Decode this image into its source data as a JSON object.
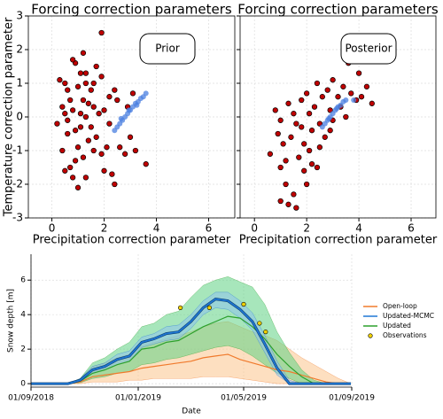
{
  "chart_data": [
    {
      "type": "scatter",
      "title": "Forcing correction parameters",
      "annotation": "Prior",
      "x_label": "Precipitation correction parameter",
      "y_label": "Temperature correction parameter",
      "xlim": [
        -0.9,
        7.0
      ],
      "ylim": [
        -3,
        3
      ],
      "xticks": [
        0,
        2,
        4,
        6
      ],
      "yticks": [
        -3,
        -2,
        -1,
        0,
        1,
        2,
        3
      ],
      "grid": true,
      "show_yticklabels": true,
      "series": [
        {
          "color": "#c00000",
          "x": [
            0.3,
            0.5,
            0.6,
            0.4,
            0.5,
            0.2,
            0.6,
            0.4,
            0.5,
            0.7,
            0.8,
            0.9,
            1.0,
            0.9,
            0.8,
            0.7,
            1.0,
            1.1,
            0.9,
            0.8,
            1.2,
            1.3,
            1.2,
            1.3,
            1.1,
            1.2,
            1.0,
            1.3,
            1.4,
            1.5,
            1.6,
            1.5,
            1.6,
            1.7,
            1.9,
            1.9,
            1.8,
            1.7,
            1.9,
            2.1,
            2.0,
            2.3,
            2.4,
            2.2,
            2.4,
            2.5,
            2.6,
            2.8,
            3.0,
            3.2,
            3.1,
            3.6,
            2.9,
            1.4,
            1.1,
            0.6,
            2.0,
            2.2,
            1.6,
            1.3
          ],
          "values": [
            1.1,
            1.0,
            0.8,
            0.3,
            0.1,
            -0.2,
            -0.5,
            -1.0,
            -1.6,
            -1.5,
            -1.8,
            -1.3,
            -0.9,
            -0.4,
            0.2,
            0.5,
            0.9,
            1.3,
            1.6,
            1.7,
            1.9,
            1.3,
            0.5,
            0.0,
            -0.3,
            -1.2,
            -2.1,
            -1.8,
            -0.7,
            -0.3,
            0.3,
            0.8,
            1.0,
            1.5,
            2.5,
            1.2,
            0.1,
            -0.6,
            -1.1,
            -0.9,
            -1.6,
            -1.7,
            -2.0,
            0.6,
            0.8,
            0.5,
            -0.9,
            -1.1,
            -0.6,
            -1.0,
            0.7,
            -1.4,
            0.3,
            0.4,
            0.1,
            -0.1,
            0.2,
            -0.2,
            -1.0,
            1.0
          ]
        },
        {
          "color": "#4a7fe0",
          "x": [
            2.4,
            2.5,
            2.6,
            2.7,
            2.8,
            2.9,
            3.0,
            3.1,
            3.2,
            3.3,
            3.4,
            3.5,
            3.6,
            2.65,
            2.95,
            3.25
          ],
          "values": [
            -0.4,
            -0.3,
            -0.2,
            -0.1,
            0.0,
            0.1,
            0.2,
            0.3,
            0.4,
            0.45,
            0.55,
            0.6,
            0.7,
            -0.05,
            0.2,
            0.35
          ]
        }
      ]
    },
    {
      "type": "scatter",
      "title": "Forcing correction parameters",
      "annotation": "Posterior",
      "x_label": "Precipitation correction parameter",
      "xlim": [
        -0.55,
        6.95
      ],
      "ylim": [
        -3,
        3
      ],
      "xticks": [
        0,
        2,
        4,
        6
      ],
      "yticks": [
        -3,
        -2,
        -1,
        0,
        1,
        2,
        3
      ],
      "grid": true,
      "show_yticklabels": false,
      "series": [
        {
          "color": "#c00000",
          "x": [
            1.0,
            1.2,
            1.3,
            1.5,
            1.6,
            1.0,
            0.6,
            1.1,
            1.4,
            1.0,
            0.8,
            0.9,
            1.5,
            1.3,
            1.8,
            1.7,
            1.9,
            2.0,
            2.1,
            2.2,
            2.3,
            2.0,
            2.5,
            2.5,
            2.6,
            2.4,
            2.8,
            2.9,
            3.0,
            3.0,
            3.2,
            3.3,
            3.4,
            3.6,
            3.7,
            3.9,
            4.0,
            4.1,
            4.3,
            4.5,
            1.9,
            2.2,
            1.6,
            2.7,
            3.5,
            2.1,
            1.8,
            2.4,
            1.2,
            2.9
          ],
          "values": [
            -2.5,
            -2.0,
            -2.6,
            -2.3,
            -2.7,
            -1.5,
            -1.1,
            -0.8,
            -0.6,
            -0.1,
            0.2,
            -0.5,
            0.1,
            0.4,
            -0.3,
            -1.2,
            -1.6,
            -2.0,
            -1.0,
            -0.4,
            0.3,
            0.7,
            -0.2,
            -0.9,
            0.6,
            1.0,
            0.8,
            0.2,
            -0.1,
            1.1,
            0.6,
            0.3,
            0.9,
            1.6,
            0.7,
            0.5,
            1.3,
            0.6,
            0.9,
            0.4,
            -0.8,
            -1.4,
            -0.2,
            -0.6,
            0.0,
            0.1,
            0.5,
            -1.5,
            -1.3,
            -0.4
          ]
        },
        {
          "color": "#4a7fe0",
          "x": [
            2.6,
            2.7,
            2.8,
            2.9,
            3.0,
            3.1,
            3.2,
            3.3,
            3.4,
            3.5,
            3.8,
            2.85,
            3.15
          ],
          "values": [
            -0.3,
            -0.2,
            -0.1,
            0.0,
            0.1,
            0.2,
            0.3,
            0.35,
            0.45,
            0.5,
            0.5,
            -0.05,
            0.25
          ]
        }
      ]
    },
    {
      "type": "line",
      "x_label": "Date",
      "y_label": "Snow depth [m]",
      "x": [
        "2018-09-01",
        "2018-09-15",
        "2018-09-29",
        "2018-10-13",
        "2018-10-27",
        "2018-11-10",
        "2018-11-24",
        "2018-12-08",
        "2018-12-22",
        "2019-01-05",
        "2019-01-19",
        "2019-02-02",
        "2019-02-16",
        "2019-03-02",
        "2019-03-16",
        "2019-03-30",
        "2019-04-13",
        "2019-04-27",
        "2019-05-11",
        "2019-05-25",
        "2019-06-08",
        "2019-06-22",
        "2019-07-06",
        "2019-07-20",
        "2019-08-03",
        "2019-08-17",
        "2019-08-31"
      ],
      "xlim": [
        "2018-09-01",
        "2019-09-01"
      ],
      "xticks": [
        {
          "value": "2018-09-01",
          "label": "01/09/2018"
        },
        {
          "value": "2019-01-01",
          "label": "01/01/2019"
        },
        {
          "value": "2019-05-01",
          "label": "01/05/2019"
        },
        {
          "value": "2019-09-01",
          "label": "01/09/2019"
        }
      ],
      "ylim": [
        -0.2,
        7.5
      ],
      "yticks": [
        0,
        2,
        4,
        6
      ],
      "grid": true,
      "series": [
        {
          "name": "Open-loop",
          "color": "#f07a2c",
          "band_color": "#fbc48c",
          "values": [
            0,
            0,
            0,
            0,
            0.1,
            0.4,
            0.5,
            0.6,
            0.7,
            0.9,
            1.0,
            1.1,
            1.2,
            1.3,
            1.5,
            1.6,
            1.7,
            1.4,
            1.2,
            1.0,
            0.8,
            0.7,
            0.5,
            0.3,
            0.1,
            0,
            0
          ],
          "lower": [
            0,
            0,
            0,
            0,
            0,
            0.1,
            0.1,
            0.1,
            0.2,
            0.2,
            0.3,
            0.3,
            0.3,
            0.3,
            0.4,
            0.4,
            0.4,
            0.3,
            0.2,
            0.1,
            0,
            0,
            0,
            0,
            0,
            0,
            0
          ],
          "upper": [
            0,
            0,
            0,
            0,
            0.3,
            1.0,
            1.2,
            1.5,
            1.7,
            2.2,
            2.4,
            2.6,
            2.8,
            3.0,
            3.3,
            3.5,
            3.6,
            3.3,
            3.0,
            2.8,
            2.5,
            2.0,
            1.5,
            1.1,
            0.7,
            0.3,
            0
          ]
        },
        {
          "name": "Updated-MCMC",
          "color": "#1f77d4",
          "band_color": "#8fc3ee",
          "values": [
            0,
            0,
            0,
            0,
            0.2,
            0.8,
            1.0,
            1.4,
            1.6,
            2.4,
            2.6,
            2.9,
            3.0,
            3.6,
            4.4,
            4.9,
            4.8,
            4.3,
            3.6,
            2.3,
            0.9,
            0,
            0,
            0,
            0,
            0,
            0
          ],
          "lower": [
            0,
            0,
            0,
            0,
            0.1,
            0.6,
            0.8,
            1.1,
            1.3,
            2.1,
            2.3,
            2.5,
            2.6,
            3.2,
            4.0,
            4.4,
            4.3,
            3.8,
            3.1,
            1.8,
            0.5,
            0,
            0,
            0,
            0,
            0,
            0
          ],
          "upper": [
            0,
            0,
            0,
            0,
            0.3,
            1.0,
            1.2,
            1.7,
            1.9,
            2.7,
            2.9,
            3.3,
            3.4,
            4.0,
            4.8,
            5.3,
            5.3,
            4.8,
            4.1,
            2.8,
            1.3,
            0.2,
            0,
            0,
            0,
            0,
            0
          ]
        },
        {
          "name": "Updated",
          "color": "#2ca02c",
          "band_color": "#5fd283",
          "values": [
            0,
            0,
            0,
            0,
            0.15,
            0.6,
            0.8,
            1.1,
            1.3,
            2.0,
            2.1,
            2.4,
            2.5,
            2.9,
            3.3,
            3.6,
            3.9,
            3.8,
            3.3,
            2.6,
            1.7,
            1.0,
            0.4,
            0,
            0,
            0,
            0
          ],
          "lower": [
            0,
            0,
            0,
            0,
            0.05,
            0.3,
            0.4,
            0.6,
            0.7,
            1.1,
            1.2,
            1.4,
            1.5,
            1.7,
            1.9,
            2.1,
            2.2,
            2.0,
            1.6,
            1.1,
            0.6,
            0.3,
            0,
            0,
            0,
            0,
            0
          ],
          "upper": [
            0,
            0,
            0,
            0,
            0.3,
            1.2,
            1.5,
            2.0,
            2.4,
            3.3,
            3.5,
            4.0,
            4.2,
            5.0,
            5.7,
            6.0,
            6.2,
            5.9,
            5.6,
            4.6,
            3.0,
            1.8,
            0.8,
            0.2,
            0,
            0,
            0
          ]
        },
        {
          "name": "Observations",
          "color": "#f0d000",
          "type": "scatter",
          "x": [
            "2019-02-18",
            "2019-03-23",
            "2019-05-01",
            "2019-05-19",
            "2019-05-26"
          ],
          "values": [
            4.4,
            4.4,
            4.6,
            3.5,
            3.0
          ]
        }
      ]
    }
  ]
}
